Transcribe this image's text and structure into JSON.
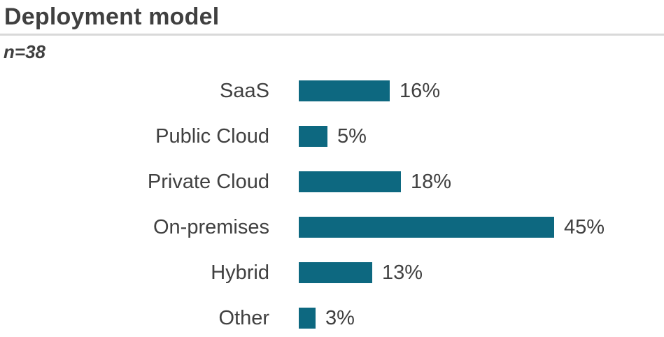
{
  "header": {
    "title": "Deployment model",
    "sample_size": "n=38"
  },
  "chart_data": {
    "type": "bar",
    "orientation": "horizontal",
    "title": "Deployment model",
    "subtitle": "n=38",
    "categories": [
      "SaaS",
      "Public Cloud",
      "Private Cloud",
      "On-premises",
      "Hybrid",
      "Other"
    ],
    "values": [
      16,
      5,
      18,
      45,
      13,
      3
    ],
    "value_suffix": "%",
    "xlabel": "",
    "ylabel": "",
    "xlim": [
      0,
      50
    ],
    "grid": false,
    "legend": false,
    "data_labels": true,
    "bar_color": "#0d6880",
    "text_color": "#404040",
    "divider_color": "#d9d9d9",
    "background_color": "#ffffff"
  }
}
